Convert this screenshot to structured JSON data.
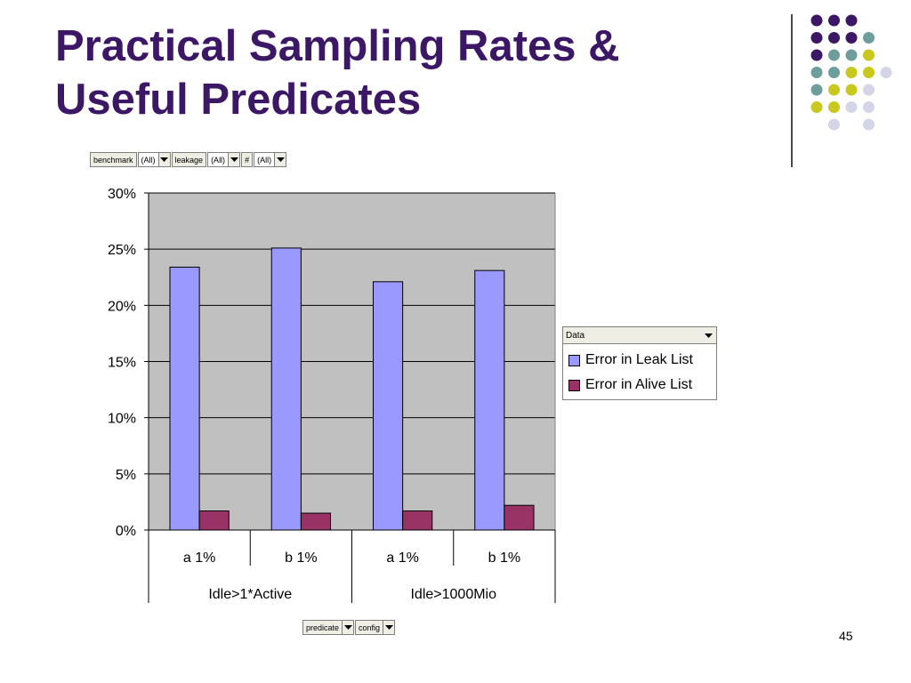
{
  "slide": {
    "title_line1": "Practical Sampling Rates &",
    "title_line2": "Useful Predicates",
    "page_number": "45"
  },
  "pivot_top": [
    {
      "field": "benchmark",
      "value": "(All)"
    },
    {
      "field": "leakage",
      "value": "(All)"
    },
    {
      "field": "#",
      "value": "(All)"
    }
  ],
  "pivot_bottom": [
    {
      "field": "predicate"
    },
    {
      "field": "config"
    }
  ],
  "legend": {
    "header": "Data"
  },
  "colors": {
    "title": "#3b1766",
    "plot_bg": "#c0c0c0",
    "leak": "#9999ff",
    "alive": "#993366",
    "dot_purple": "#3b1766",
    "dot_teal": "#6e9e9b",
    "dot_lime": "#c8c81e",
    "dot_lavender": "#d5d5e8"
  },
  "chart_data": {
    "type": "bar",
    "categories": [
      "a 1%",
      "b 1%",
      "a 1%",
      "b 1%"
    ],
    "groups": [
      {
        "label": "Idle>1*Active",
        "span": 2
      },
      {
        "label": "Idle>1000Mio",
        "span": 2
      }
    ],
    "series": [
      {
        "name": "Error in Leak List",
        "values": [
          0.234,
          0.251,
          0.221,
          0.231
        ]
      },
      {
        "name": "Error in Alive List",
        "values": [
          0.017,
          0.015,
          0.017,
          0.022
        ]
      }
    ],
    "yticks": [
      "0%",
      "5%",
      "10%",
      "15%",
      "20%",
      "25%",
      "30%"
    ],
    "ylim": [
      0,
      0.3
    ],
    "grid": true,
    "legend_position": "right"
  }
}
